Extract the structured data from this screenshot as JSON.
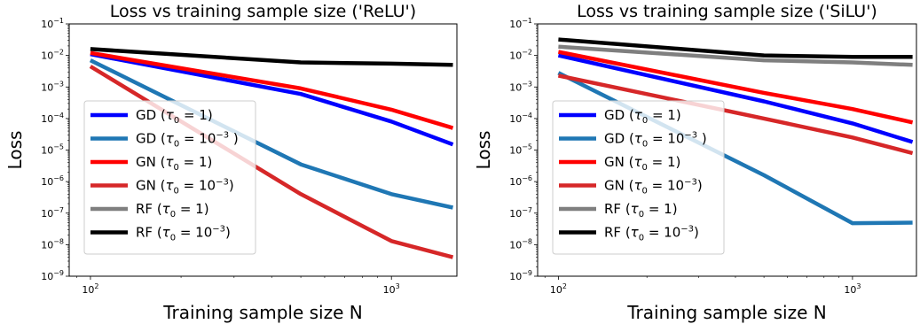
{
  "chart_data": [
    {
      "type": "line",
      "title": "Loss vs training sample size ('ReLU')",
      "xlabel": "Training sample size N",
      "ylabel": "Loss",
      "xscale": "log",
      "yscale": "log",
      "xlim": [
        85,
        1650
      ],
      "ylim": [
        1e-09,
        0.1
      ],
      "x_ticks": [
        {
          "value": 100,
          "label": "10",
          "exp": "2"
        },
        {
          "value": 1000,
          "label": "10",
          "exp": "3"
        }
      ],
      "y_ticks": [
        {
          "value": 0.1,
          "label": "10",
          "exp": "−1"
        },
        {
          "value": 0.01,
          "label": "10",
          "exp": "−2"
        },
        {
          "value": 0.001,
          "label": "10",
          "exp": "−3"
        },
        {
          "value": 0.0001,
          "label": "10",
          "exp": "−4"
        },
        {
          "value": 1e-05,
          "label": "10",
          "exp": "−5"
        },
        {
          "value": 1e-06,
          "label": "10",
          "exp": "−6"
        },
        {
          "value": 1e-07,
          "label": "10",
          "exp": "−7"
        },
        {
          "value": 1e-08,
          "label": "10",
          "exp": "−8"
        },
        {
          "value": 1e-09,
          "label": "10",
          "exp": "−9"
        }
      ],
      "grid": false,
      "legend_position": "lower-left",
      "series": [
        {
          "name": "GD (τ₀ = 1)",
          "legend": {
            "pre": "GD (",
            "sym": "τ",
            "sub": "0",
            "post": " = 1)",
            "exp": ""
          },
          "color": "#0000ff",
          "x": [
            100,
            500,
            1000,
            1600
          ],
          "y": [
            0.011,
            0.0006,
            8e-05,
            1.5e-05
          ]
        },
        {
          "name": "GD (τ₀ = 10⁻³ )",
          "legend": {
            "pre": "GD (",
            "sym": "τ",
            "sub": "0",
            "post": " = 10",
            "exp": "−3",
            "tail": " )"
          },
          "color": "#1f77b4",
          "x": [
            100,
            500,
            1000,
            1600
          ],
          "y": [
            0.007,
            3.5e-06,
            4e-07,
            1.5e-07
          ]
        },
        {
          "name": "GN (τ₀ = 1)",
          "legend": {
            "pre": "GN (",
            "sym": "τ",
            "sub": "0",
            "post": " = 1)",
            "exp": ""
          },
          "color": "#ff0000",
          "x": [
            100,
            500,
            1000,
            1600
          ],
          "y": [
            0.012,
            0.0009,
            0.00019,
            5e-05
          ]
        },
        {
          "name": "GN (τ₀ = 10⁻³)",
          "legend": {
            "pre": "GN (",
            "sym": "τ",
            "sub": "0",
            "post": " = 10",
            "exp": "−3",
            "tail": ")"
          },
          "color": "#d62728",
          "x": [
            100,
            500,
            1000,
            1600
          ],
          "y": [
            0.0045,
            4e-07,
            1.3e-08,
            4e-09
          ]
        },
        {
          "name": "RF (τ₀ = 1)",
          "legend": {
            "pre": "RF (",
            "sym": "τ",
            "sub": "0",
            "post": " = 1)",
            "exp": ""
          },
          "color": "#7f7f7f",
          "x": [],
          "y": []
        },
        {
          "name": "RF (τ₀ = 10⁻³)",
          "legend": {
            "pre": "RF (",
            "sym": "τ",
            "sub": "0",
            "post": " = 10",
            "exp": "−3",
            "tail": ")"
          },
          "color": "#000000",
          "x": [
            100,
            500,
            1000,
            1600
          ],
          "y": [
            0.016,
            0.006,
            0.0055,
            0.005
          ]
        }
      ]
    },
    {
      "type": "line",
      "title": "Loss vs training sample size ('SiLU')",
      "xlabel": "Training sample size N",
      "ylabel": "Loss",
      "xscale": "log",
      "yscale": "log",
      "xlim": [
        85,
        1650
      ],
      "ylim": [
        1e-09,
        0.1
      ],
      "x_ticks": [
        {
          "value": 100,
          "label": "10",
          "exp": "2"
        },
        {
          "value": 1000,
          "label": "10",
          "exp": "3"
        }
      ],
      "y_ticks": [
        {
          "value": 0.1,
          "label": "10",
          "exp": "−1"
        },
        {
          "value": 0.01,
          "label": "10",
          "exp": "−2"
        },
        {
          "value": 0.001,
          "label": "10",
          "exp": "−3"
        },
        {
          "value": 0.0001,
          "label": "10",
          "exp": "−4"
        },
        {
          "value": 1e-05,
          "label": "10",
          "exp": "−5"
        },
        {
          "value": 1e-06,
          "label": "10",
          "exp": "−6"
        },
        {
          "value": 1e-07,
          "label": "10",
          "exp": "−7"
        },
        {
          "value": 1e-08,
          "label": "10",
          "exp": "−8"
        },
        {
          "value": 1e-09,
          "label": "10",
          "exp": "−9"
        }
      ],
      "grid": false,
      "legend_position": "lower-left",
      "series": [
        {
          "name": "GD (τ₀ = 1)",
          "legend": {
            "pre": "GD (",
            "sym": "τ",
            "sub": "0",
            "post": " = 1)",
            "exp": ""
          },
          "color": "#0000ff",
          "x": [
            100,
            500,
            1000,
            1600
          ],
          "y": [
            0.01,
            0.00035,
            7e-05,
            1.8e-05
          ]
        },
        {
          "name": "GD (τ₀ = 10⁻³ )",
          "legend": {
            "pre": "GD (",
            "sym": "τ",
            "sub": "0",
            "post": " = 10",
            "exp": "−3",
            "tail": " )"
          },
          "color": "#1f77b4",
          "x": [
            100,
            500,
            1000,
            1600
          ],
          "y": [
            0.0028,
            1.6e-06,
            4.8e-08,
            5e-08
          ]
        },
        {
          "name": "GN (τ₀ = 1)",
          "legend": {
            "pre": "GN (",
            "sym": "τ",
            "sub": "0",
            "post": " = 1)",
            "exp": ""
          },
          "color": "#ff0000",
          "x": [
            100,
            500,
            1000,
            1600
          ],
          "y": [
            0.013,
            0.00065,
            0.0002,
            7.5e-05
          ]
        },
        {
          "name": "GN (τ₀ = 10⁻³)",
          "legend": {
            "pre": "GN (",
            "sym": "τ",
            "sub": "0",
            "post": " = 10",
            "exp": "−3",
            "tail": ")"
          },
          "color": "#d62728",
          "x": [
            100,
            500,
            1000,
            1600
          ],
          "y": [
            0.0023,
            0.0001,
            2.5e-05,
            8e-06
          ]
        },
        {
          "name": "RF (τ₀ = 1)",
          "legend": {
            "pre": "RF (",
            "sym": "τ",
            "sub": "0",
            "post": " = 1)",
            "exp": ""
          },
          "color": "#7f7f7f",
          "x": [
            100,
            500,
            1000,
            1600
          ],
          "y": [
            0.019,
            0.007,
            0.006,
            0.005
          ]
        },
        {
          "name": "RF (τ₀ = 10⁻³)",
          "legend": {
            "pre": "RF (",
            "sym": "τ",
            "sub": "0",
            "post": " = 10",
            "exp": "−3",
            "tail": ")"
          },
          "color": "#000000",
          "x": [
            100,
            500,
            1000,
            1600
          ],
          "y": [
            0.032,
            0.01,
            0.009,
            0.009
          ]
        }
      ]
    }
  ]
}
